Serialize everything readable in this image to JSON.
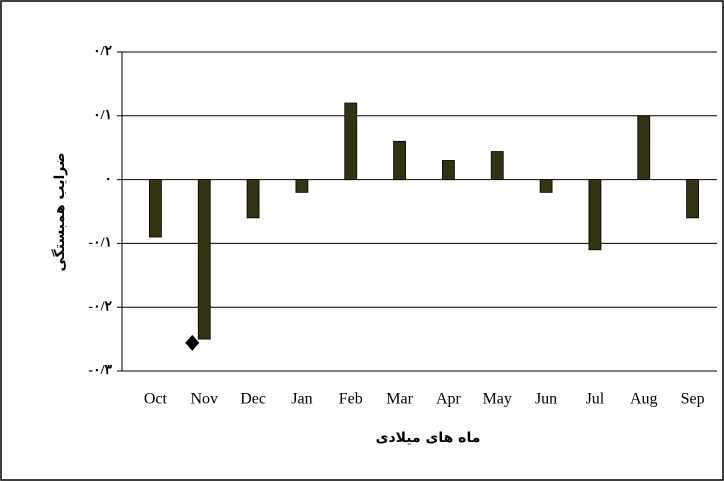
{
  "chart_data": {
    "type": "bar",
    "x_label": "ماه های میلادی",
    "y_label": "ضرایب همبستگی",
    "categories": [
      "Oct",
      "Nov",
      "Dec",
      "Jan",
      "Feb",
      "Mar",
      "Apr",
      "May",
      "Jun",
      "Jul",
      "Aug",
      "Sep"
    ],
    "values": [
      -0.09,
      -0.25,
      -0.06,
      -0.02,
      0.12,
      0.06,
      0.03,
      0.044,
      -0.02,
      -0.11,
      0.1,
      -0.06
    ],
    "markers": [
      null,
      -0.256,
      null,
      null,
      null,
      null,
      null,
      null,
      null,
      null,
      null,
      null
    ],
    "color": "#333310",
    "ylim": [
      -0.3,
      0.2
    ],
    "yticks": [
      {
        "value": -0.3,
        "label": "-۰/۳"
      },
      {
        "value": -0.2,
        "label": "-۰/۲"
      },
      {
        "value": -0.1,
        "label": "-۰/۱"
      },
      {
        "value": 0,
        "label": "۰"
      },
      {
        "value": 0.1,
        "label": "۰/۱"
      },
      {
        "value": 0.2,
        "label": "۰/۲"
      }
    ],
    "grid": true
  }
}
